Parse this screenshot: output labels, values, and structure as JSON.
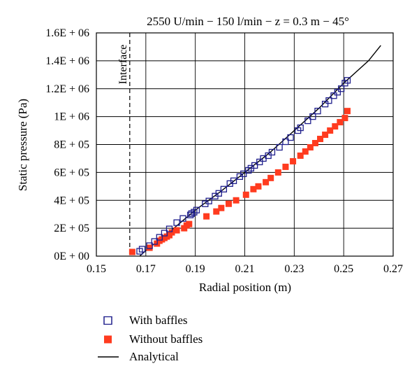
{
  "chart_data": {
    "type": "scatter",
    "title": "2550 U/min − 150 l/min − z = 0.3 m − 45°",
    "xlabel": "Radial position (m)",
    "ylabel": "Static pressure (Pa)",
    "xlim": [
      0.15,
      0.27
    ],
    "ylim": [
      0,
      1600000
    ],
    "x_ticks": [
      "0.15",
      "0.17",
      "0.19",
      "0.21",
      "0.23",
      "0.25",
      "0.27"
    ],
    "x_tick_values": [
      0.15,
      0.17,
      0.19,
      0.21,
      0.23,
      0.25,
      0.27
    ],
    "y_ticks": [
      "0E + 00",
      "2E + 05",
      "4E + 05",
      "6E + 05",
      "8E + 05",
      "1E + 06",
      "1.2E + 06",
      "1.4E + 06",
      "1.6E + 06"
    ],
    "y_tick_values": [
      0,
      200000,
      400000,
      600000,
      800000,
      1000000,
      1200000,
      1400000,
      1600000
    ],
    "grid": true,
    "legend_position": "bottom",
    "annotation": {
      "text": "Interface",
      "x": 0.1635
    },
    "colors": {
      "with_baffles": "#1f1f8c",
      "without_baffles": "#ff3b1f",
      "analytical": "#000000"
    },
    "series": [
      {
        "name": "With baffles",
        "marker": "open-square",
        "x": [
          0.1675,
          0.1685,
          0.1715,
          0.1735,
          0.1755,
          0.1775,
          0.1795,
          0.1825,
          0.185,
          0.188,
          0.1885,
          0.1895,
          0.1905,
          0.194,
          0.1955,
          0.198,
          0.1995,
          0.2015,
          0.204,
          0.2055,
          0.208,
          0.2095,
          0.2115,
          0.2125,
          0.214,
          0.216,
          0.2175,
          0.2195,
          0.221,
          0.224,
          0.2265,
          0.2285,
          0.2315,
          0.2325,
          0.2355,
          0.2375,
          0.2395,
          0.2425,
          0.244,
          0.246,
          0.2475,
          0.249,
          0.2505,
          0.2515
        ],
        "y": [
          35000,
          50000,
          75000,
          105000,
          135000,
          165000,
          195000,
          240000,
          270000,
          295000,
          305000,
          315000,
          330000,
          375000,
          395000,
          430000,
          450000,
          480000,
          520000,
          540000,
          570000,
          590000,
          615000,
          630000,
          650000,
          675000,
          700000,
          720000,
          745000,
          780000,
          820000,
          850000,
          900000,
          920000,
          970000,
          1000000,
          1040000,
          1090000,
          1115000,
          1150000,
          1175000,
          1200000,
          1240000,
          1260000
        ]
      },
      {
        "name": "Without baffles",
        "marker": "filled-square",
        "x": [
          0.1645,
          0.1715,
          0.1745,
          0.1755,
          0.1765,
          0.1775,
          0.1785,
          0.1795,
          0.1805,
          0.1825,
          0.1855,
          0.1865,
          0.1875,
          0.1945,
          0.1985,
          0.2005,
          0.2035,
          0.2065,
          0.2105,
          0.2135,
          0.2155,
          0.2185,
          0.2205,
          0.2235,
          0.2265,
          0.2295,
          0.2325,
          0.2345,
          0.2365,
          0.2385,
          0.2405,
          0.2425,
          0.2445,
          0.2465,
          0.2485,
          0.2505,
          0.2515
        ],
        "y": [
          30000,
          60000,
          90000,
          110000,
          120000,
          130000,
          140000,
          150000,
          170000,
          185000,
          200000,
          220000,
          230000,
          285000,
          320000,
          345000,
          375000,
          400000,
          440000,
          480000,
          500000,
          530000,
          560000,
          600000,
          640000,
          680000,
          720000,
          750000,
          780000,
          810000,
          840000,
          870000,
          900000,
          930000,
          960000,
          990000,
          1040000
        ]
      },
      {
        "name": "Analytical",
        "marker": "line",
        "x": [
          0.1675,
          0.17,
          0.18,
          0.19,
          0.2,
          0.21,
          0.22,
          0.23,
          0.24,
          0.25,
          0.26,
          0.265
        ],
        "y": [
          0,
          40000,
          180000,
          330000,
          460000,
          600000,
          740000,
          900000,
          1060000,
          1240000,
          1400000,
          1510000
        ]
      }
    ]
  }
}
